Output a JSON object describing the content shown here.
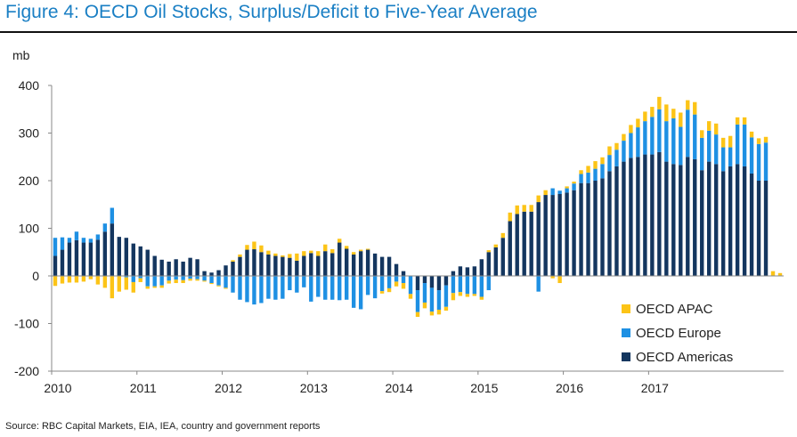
{
  "title": "Figure 4: OECD Oil Stocks, Surplus/Deficit to Five-Year Average",
  "source": "Source: RBC Capital Markets, EIA, IEA, country and government reports",
  "chart_data": {
    "type": "bar",
    "stacked": true,
    "ylabel": "mb",
    "ylim": [
      -200,
      400
    ],
    "yticks": [
      -200,
      -100,
      0,
      100,
      200,
      300,
      400
    ],
    "xticks": [
      "2010",
      "2011",
      "2012",
      "2013",
      "2014",
      "2015",
      "2016",
      "2017"
    ],
    "grid": false,
    "legend_position": "bottom-right",
    "series": [
      {
        "name": "OECD APAC",
        "color": "#fcc417",
        "values": [
          -21,
          -16,
          -14,
          -14,
          -12,
          -7,
          -18,
          -25,
          -47,
          -33,
          -26,
          -22,
          -8,
          -5,
          -3,
          -5,
          -6,
          -7,
          -6,
          -4,
          -3,
          -2,
          -2,
          -2,
          -2,
          3,
          5,
          10,
          16,
          14,
          8,
          5,
          3,
          8,
          15,
          10,
          5,
          10,
          14,
          8,
          8,
          6,
          5,
          3,
          2,
          0,
          -5,
          -8,
          -10,
          -12,
          -10,
          -10,
          -12,
          -8,
          -10,
          -8,
          -15,
          -8,
          -6,
          -4,
          -6,
          4,
          6,
          10,
          18,
          18,
          14,
          14,
          14,
          10,
          -5,
          -15,
          4,
          4,
          8,
          14,
          16,
          14,
          18,
          14,
          14,
          17,
          18,
          20,
          21,
          26,
          35,
          20,
          30,
          20,
          26,
          16,
          20,
          23,
          20,
          24,
          15,
          15,
          12,
          12,
          12,
          10,
          6
        ]
      },
      {
        "name": "OECD Europe",
        "color": "#1e90e3",
        "values": [
          38,
          26,
          10,
          18,
          10,
          8,
          11,
          17,
          33,
          0,
          -3,
          -13,
          -5,
          -22,
          -22,
          -20,
          -10,
          -8,
          -9,
          -6,
          -7,
          -10,
          -15,
          -20,
          -25,
          -35,
          -50,
          -55,
          -60,
          -57,
          -48,
          -50,
          -48,
          -30,
          -35,
          -24,
          -54,
          -44,
          -50,
          -50,
          -51,
          -50,
          -67,
          -70,
          -40,
          -47,
          -32,
          -26,
          -12,
          -15,
          -38,
          -46,
          -41,
          -50,
          -41,
          -45,
          -36,
          -34,
          -38,
          -38,
          -44,
          -30,
          0,
          0,
          0,
          0,
          0,
          0,
          -33,
          0,
          14,
          7,
          9,
          14,
          19,
          22,
          25,
          30,
          34,
          35,
          44,
          52,
          62,
          70,
          79,
          90,
          85,
          96,
          80,
          99,
          94,
          68,
          65,
          62,
          50,
          40,
          83,
          88,
          76,
          77,
          80
        ]
      },
      {
        "name": "OECD Americas",
        "color": "#14365f",
        "values": [
          42,
          55,
          70,
          75,
          70,
          70,
          76,
          93,
          110,
          82,
          80,
          68,
          62,
          55,
          42,
          34,
          30,
          35,
          30,
          38,
          35,
          10,
          7,
          12,
          22,
          30,
          40,
          55,
          56,
          50,
          45,
          42,
          40,
          38,
          32,
          42,
          48,
          42,
          52,
          48,
          70,
          57,
          45,
          52,
          55,
          47,
          40,
          40,
          25,
          10,
          0,
          -30,
          -15,
          -25,
          -30,
          -20,
          10,
          20,
          18,
          20,
          35,
          50,
          60,
          80,
          115,
          130,
          135,
          135,
          155,
          170,
          170,
          172,
          175,
          180,
          195,
          195,
          200,
          205,
          220,
          230,
          240,
          248,
          250,
          255,
          255,
          260,
          240,
          235,
          233,
          250,
          245,
          222,
          240,
          235,
          220,
          230,
          235,
          230,
          215,
          200,
          200
        ]
      }
    ]
  }
}
